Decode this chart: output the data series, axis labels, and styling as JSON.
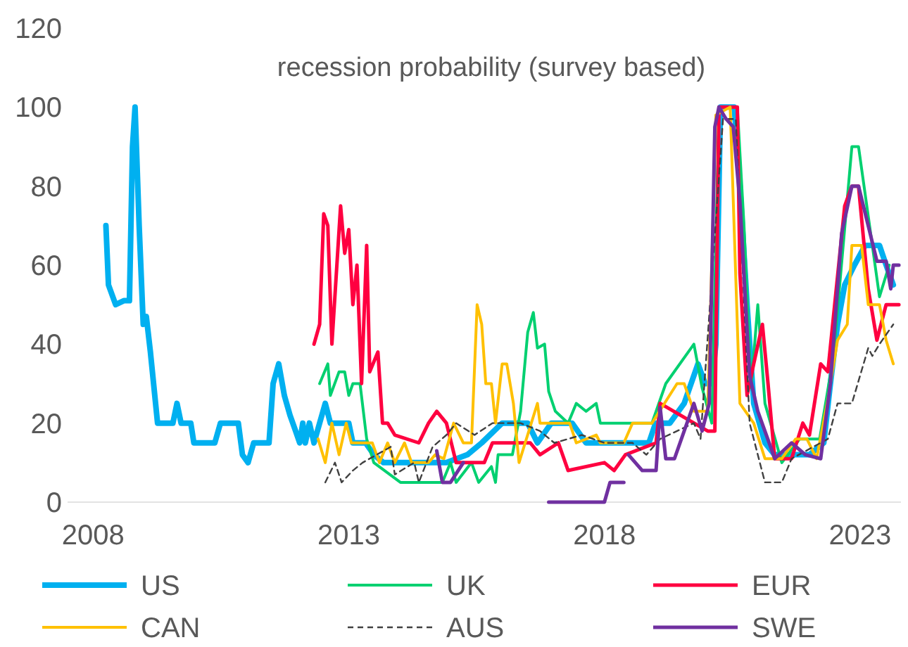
{
  "chart_data": {
    "type": "line",
    "title": "recession probability (survey based)",
    "xlim": [
      2007.5,
      2023.8
    ],
    "xticks": [
      2008,
      2013,
      2018,
      2023
    ],
    "ylim": [
      0,
      120
    ],
    "yticks": [
      0,
      20,
      40,
      60,
      80,
      100,
      120
    ],
    "grid": false,
    "legend": "bottom",
    "line_style": "solid",
    "series": [
      {
        "name": "US",
        "color": "#00b0f0",
        "x": [
          2008.25,
          2008.3,
          2008.44,
          2008.6,
          2008.71,
          2008.77,
          2008.82,
          2008.9,
          2008.98,
          2009.04,
          2009.12,
          2009.26,
          2009.56,
          2009.64,
          2009.72,
          2009.91,
          2009.97,
          2010.38,
          2010.49,
          2010.84,
          2010.92,
          2011.03,
          2011.14,
          2011.44,
          2011.52,
          2011.63,
          2011.74,
          2011.85,
          2011.96,
          2012.04,
          2012.1,
          2012.15,
          2012.23,
          2012.32,
          2012.43,
          2012.54,
          2012.64,
          2013.0,
          2013.08,
          2013.33,
          2013.49,
          2013.68,
          2014.91,
          2015.32,
          2015.6,
          2016.0,
          2016.5,
          2016.69,
          2016.96,
          2017.37,
          2017.64,
          2018.87,
          2019.0,
          2019.28,
          2019.56,
          2019.83,
          2019.97,
          2020.1,
          2020.18,
          2020.27,
          2020.54,
          2020.65,
          2020.79,
          2020.92,
          2021.14,
          2021.33,
          2022.01,
          2022.29,
          2022.42,
          2022.56,
          2022.7,
          2022.89,
          2023.1,
          2023.38,
          2023.51,
          2023.65
        ],
        "values": [
          70,
          55,
          50,
          51,
          51,
          90,
          100,
          70,
          45,
          47,
          38,
          20,
          20,
          25,
          20,
          20,
          15,
          15,
          20,
          20,
          12,
          10,
          15,
          15,
          30,
          35,
          27,
          22,
          18,
          15,
          20,
          15,
          20,
          15,
          20,
          25,
          20,
          20,
          15,
          15,
          12,
          10,
          10,
          12,
          15,
          20,
          20,
          15,
          20,
          20,
          15,
          15,
          20,
          20,
          25,
          35,
          30,
          30,
          40,
          100,
          100,
          80,
          50,
          25,
          15,
          12,
          12,
          15,
          30,
          45,
          55,
          60,
          65,
          65,
          60,
          55
        ]
      },
      {
        "name": "UK",
        "color": "#00d070",
        "x": [
          2012.43,
          2012.59,
          2012.64,
          2012.81,
          2012.92,
          2013.0,
          2013.08,
          2013.22,
          2013.35,
          2013.49,
          2014.01,
          2014.83,
          2014.99,
          2015.1,
          2015.4,
          2015.54,
          2015.79,
          2015.87,
          2015.92,
          2016.2,
          2016.36,
          2016.5,
          2016.61,
          2016.69,
          2016.83,
          2016.91,
          2017.04,
          2017.29,
          2017.45,
          2017.64,
          2017.84,
          2017.92,
          2018.93,
          2019.2,
          2019.75,
          2019.91,
          2020.1,
          2020.24,
          2020.6,
          2020.73,
          2020.87,
          2021.0,
          2021.14,
          2021.47,
          2021.82,
          2022.21,
          2022.48,
          2022.84,
          2022.97,
          2023.38,
          2023.57
        ],
        "values": [
          30,
          35,
          27,
          33,
          33,
          27,
          30,
          30,
          16,
          10,
          5,
          5,
          10,
          5,
          10,
          5,
          9,
          5,
          12,
          12,
          23,
          43,
          48,
          39,
          40,
          28,
          23,
          20,
          25,
          23,
          25,
          20,
          20,
          30,
          40,
          29,
          20,
          100,
          100,
          70,
          29,
          50,
          25,
          10,
          16,
          16,
          37,
          90,
          90,
          52,
          60
        ]
      },
      {
        "name": "EUR",
        "color": "#ff0040",
        "x": [
          2012.32,
          2012.43,
          2012.51,
          2012.59,
          2012.67,
          2012.84,
          2012.92,
          2013.0,
          2013.08,
          2013.16,
          2013.25,
          2013.35,
          2013.41,
          2013.57,
          2013.66,
          2013.76,
          2013.9,
          2014.37,
          2014.56,
          2014.72,
          2014.91,
          2015.1,
          2015.65,
          2015.81,
          2016.55,
          2016.74,
          2017.1,
          2017.29,
          2018.0,
          2018.19,
          2018.41,
          2019.01,
          2019.09,
          2020.02,
          2020.16,
          2020.24,
          2020.6,
          2020.65,
          2020.79,
          2020.92,
          2021.09,
          2021.2,
          2021.33,
          2021.66,
          2021.88,
          2022.01,
          2022.23,
          2022.37,
          2022.7,
          2022.84,
          2022.97,
          2023.16,
          2023.33,
          2023.51,
          2023.76
        ],
        "values": [
          40,
          45,
          73,
          70,
          40,
          75,
          63,
          69,
          50,
          60,
          30,
          65,
          33,
          38,
          20,
          20,
          17,
          15,
          20,
          23,
          20,
          10,
          10,
          15,
          15,
          12,
          15,
          8,
          10,
          8,
          12,
          15,
          25,
          18,
          18,
          100,
          100,
          58,
          27,
          35,
          45,
          30,
          11,
          11,
          20,
          17,
          35,
          33,
          75,
          80,
          80,
          54,
          41,
          50,
          50
        ]
      },
      {
        "name": "CAN",
        "color": "#ffc000",
        "x": [
          2012.4,
          2012.54,
          2012.67,
          2012.81,
          2012.95,
          2013.05,
          2013.46,
          2013.6,
          2013.76,
          2013.9,
          2014.09,
          2014.23,
          2014.56,
          2014.69,
          2014.86,
          2015.05,
          2015.24,
          2015.4,
          2015.51,
          2015.6,
          2015.68,
          2015.79,
          2015.87,
          2016.0,
          2016.09,
          2016.22,
          2016.33,
          2016.69,
          2016.74,
          2017.32,
          2017.45,
          2017.84,
          2017.92,
          2018.38,
          2018.55,
          2018.93,
          2019.42,
          2019.56,
          2019.75,
          2020.02,
          2020.18,
          2020.46,
          2020.65,
          2020.92,
          2021.14,
          2021.47,
          2021.74,
          2021.96,
          2022.15,
          2022.37,
          2022.56,
          2022.75,
          2022.84,
          2023.03,
          2023.16,
          2023.38,
          2023.51,
          2023.65
        ],
        "values": [
          16,
          10,
          20,
          12,
          20,
          15,
          15,
          10,
          15,
          10,
          15,
          10,
          10,
          12,
          11,
          20,
          15,
          15,
          50,
          45,
          30,
          30,
          20,
          35,
          35,
          25,
          10,
          25,
          20,
          20,
          15,
          17,
          15,
          15,
          20,
          20,
          30,
          30,
          23,
          23,
          98,
          100,
          25,
          20,
          11,
          11,
          16,
          16,
          11,
          26,
          41,
          45,
          65,
          65,
          50,
          50,
          41,
          35
        ]
      },
      {
        "name": "AUS",
        "color": "#404040",
        "line_style": "dashed",
        "x": [
          2012.54,
          2012.73,
          2012.86,
          2013.08,
          2013.27,
          2013.82,
          2013.9,
          2014.28,
          2014.37,
          2014.64,
          2014.91,
          2015.1,
          2015.46,
          2015.81,
          2016.36,
          2016.74,
          2017.02,
          2017.56,
          2018.0,
          2018.55,
          2018.82,
          2019.09,
          2019.75,
          2019.88,
          2020.32,
          2020.57,
          2020.84,
          2021.14,
          2021.47,
          2021.66,
          2022.37,
          2022.56,
          2022.84,
          2023.16,
          2023.24,
          2023.38,
          2023.65
        ],
        "values": [
          5,
          10,
          5,
          8,
          10,
          14,
          7,
          10,
          5,
          14,
          17,
          20,
          17,
          20,
          20,
          18,
          15,
          17,
          15,
          15,
          12,
          16,
          20,
          16,
          97,
          97,
          20,
          5,
          5,
          11,
          16,
          25,
          25,
          39,
          37,
          40,
          45
        ]
      },
      {
        "name": "SWE",
        "color": "#7030a0",
        "x": [
          2014.72,
          2014.83,
          2014.99,
          2015.24,
          2016.0,
          2016.91,
          2018.0,
          2018.11,
          2018.38,
          2018.42,
          2018.47,
          2018.74,
          2019.01,
          2019.09,
          2019.2,
          2019.37,
          2019.75,
          2019.91,
          2020.05,
          2020.16,
          2020.24,
          2020.38,
          2020.52,
          2020.65,
          2020.84,
          2021.0,
          2021.25,
          2021.33,
          2021.66,
          2021.93,
          2022.23,
          2022.42,
          2022.64,
          2022.84,
          2022.97,
          2023.33,
          2023.51,
          2023.6,
          2023.65,
          2023.76
        ],
        "values": [
          13,
          5,
          5,
          10,
          null,
          0,
          0,
          5,
          5,
          null,
          12,
          8,
          8,
          24,
          11,
          11,
          25,
          18,
          25,
          95,
          100,
          97,
          95,
          76,
          32,
          23,
          14,
          11,
          15,
          12,
          11,
          30,
          68,
          80,
          80,
          61,
          61,
          54,
          60,
          60
        ]
      }
    ]
  }
}
